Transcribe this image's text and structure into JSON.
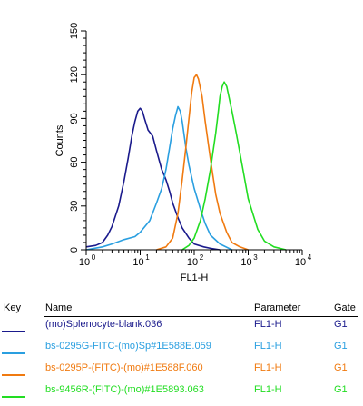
{
  "chart_data": {
    "type": "line",
    "xlabel": "FL1-H",
    "ylabel": "Counts",
    "xscale": "log",
    "xlim": [
      1,
      10000
    ],
    "ylim": [
      0,
      150
    ],
    "x_ticks": [
      {
        "base": "10",
        "exp": "0",
        "value": 1
      },
      {
        "base": "10",
        "exp": "1",
        "value": 10
      },
      {
        "base": "10",
        "exp": "2",
        "value": 100
      },
      {
        "base": "10",
        "exp": "3",
        "value": 1000
      },
      {
        "base": "10",
        "exp": "4",
        "value": 10000
      }
    ],
    "y_ticks": [
      "0",
      "30",
      "60",
      "90",
      "120",
      "150"
    ],
    "grid": false,
    "series": [
      {
        "name": "(mo)Splenocyte-blank.036",
        "color": "#1a1a8c",
        "x": [
          1,
          1.5,
          2,
          2.5,
          3,
          4,
          5,
          6,
          7,
          8,
          9,
          10,
          11,
          12,
          14,
          17,
          20,
          25,
          30,
          35,
          40,
          50,
          60,
          80,
          100,
          150,
          200,
          300
        ],
        "y": [
          2,
          3,
          5,
          10,
          16,
          30,
          47,
          63,
          78,
          88,
          95,
          97,
          95,
          90,
          82,
          78,
          68,
          55,
          48,
          40,
          32,
          22,
          15,
          8,
          4,
          2,
          1,
          0
        ]
      },
      {
        "name": "bs-0295G-FITC-(mo)Sp#1E588E.059",
        "color": "#2a9fe0",
        "x": [
          1,
          2,
          3,
          5,
          8,
          10,
          15,
          20,
          25,
          30,
          35,
          40,
          45,
          50,
          55,
          60,
          70,
          80,
          100,
          130,
          160,
          200,
          300,
          500
        ],
        "y": [
          0,
          2,
          4,
          7,
          9,
          12,
          20,
          32,
          42,
          55,
          70,
          83,
          92,
          98,
          95,
          88,
          70,
          58,
          42,
          28,
          18,
          10,
          4,
          0
        ]
      },
      {
        "name": "bs-0295P-(FITC)-(mo)#1E588F.060",
        "color": "#f07a10",
        "x": [
          20,
          30,
          40,
          50,
          60,
          70,
          80,
          90,
          100,
          110,
          120,
          140,
          160,
          200,
          250,
          300,
          400,
          500,
          700,
          1000
        ],
        "y": [
          0,
          2,
          8,
          25,
          48,
          70,
          90,
          108,
          118,
          120,
          117,
          105,
          88,
          62,
          38,
          25,
          12,
          5,
          2,
          0
        ]
      },
      {
        "name": "bs-9456R-(FITC)-(mo)#1E5893.063",
        "color": "#22dd22",
        "x": [
          60,
          80,
          100,
          130,
          160,
          200,
          250,
          280,
          300,
          330,
          360,
          400,
          500,
          600,
          800,
          1000,
          1500,
          2000,
          3000,
          5000
        ],
        "y": [
          0,
          3,
          8,
          20,
          35,
          55,
          80,
          95,
          105,
          112,
          115,
          112,
          95,
          80,
          55,
          35,
          14,
          6,
          2,
          0
        ]
      }
    ]
  },
  "key": {
    "header": {
      "key": "Key",
      "name": "Name",
      "parameter": "Parameter",
      "gate": "Gate"
    },
    "rows": [
      {
        "name": "(mo)Splenocyte-blank.036",
        "parameter": "FL1-H",
        "gate": "G1",
        "color": "#1a1a8c"
      },
      {
        "name": "bs-0295G-FITC-(mo)Sp#1E588E.059",
        "parameter": "FL1-H",
        "gate": "G1",
        "color": "#2a9fe0"
      },
      {
        "name": "bs-0295P-(FITC)-(mo)#1E588F.060",
        "parameter": "FL1-H",
        "gate": "G1",
        "color": "#f07a10"
      },
      {
        "name": "bs-9456R-(FITC)-(mo)#1E5893.063",
        "parameter": "FL1-H",
        "gate": "G1",
        "color": "#22dd22"
      }
    ]
  }
}
